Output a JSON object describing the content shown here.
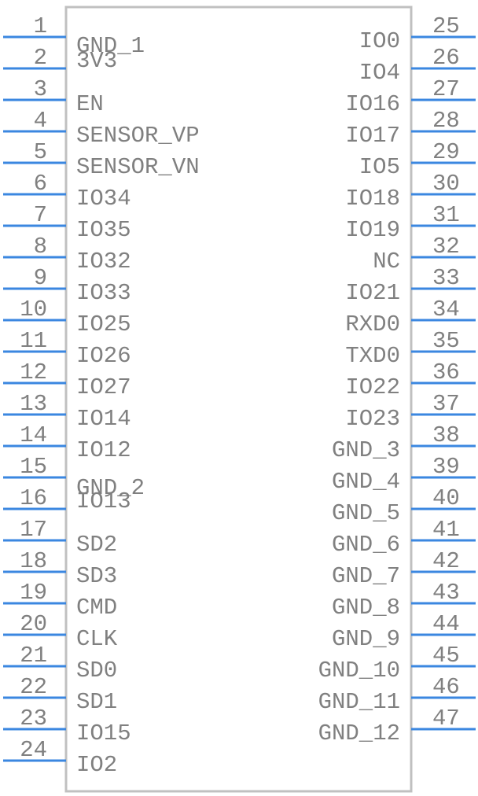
{
  "component": {
    "body_color": "#c0c0c0",
    "pin_color": "#3b87e0",
    "text_color": "#808080",
    "left_pins": [
      {
        "number": "1",
        "name": "GND_1"
      },
      {
        "number": "2",
        "name": "3V3"
      },
      {
        "number": "3",
        "name": "EN"
      },
      {
        "number": "4",
        "name": "SENSOR_VP"
      },
      {
        "number": "5",
        "name": "SENSOR_VN"
      },
      {
        "number": "6",
        "name": "IO34"
      },
      {
        "number": "7",
        "name": "IO35"
      },
      {
        "number": "8",
        "name": "IO32"
      },
      {
        "number": "9",
        "name": "IO33"
      },
      {
        "number": "10",
        "name": "IO25"
      },
      {
        "number": "11",
        "name": "IO26"
      },
      {
        "number": "12",
        "name": "IO27"
      },
      {
        "number": "13",
        "name": "IO14"
      },
      {
        "number": "14",
        "name": "IO12"
      },
      {
        "number": "15",
        "name": "GND_2"
      },
      {
        "number": "16",
        "name": "IO13"
      },
      {
        "number": "17",
        "name": "SD2"
      },
      {
        "number": "18",
        "name": "SD3"
      },
      {
        "number": "19",
        "name": "CMD"
      },
      {
        "number": "20",
        "name": "CLK"
      },
      {
        "number": "21",
        "name": "SD0"
      },
      {
        "number": "22",
        "name": "SD1"
      },
      {
        "number": "23",
        "name": "IO15"
      },
      {
        "number": "24",
        "name": "IO2"
      }
    ],
    "right_pins": [
      {
        "number": "25",
        "name": "IO0"
      },
      {
        "number": "26",
        "name": "IO4"
      },
      {
        "number": "27",
        "name": "IO16"
      },
      {
        "number": "28",
        "name": "IO17"
      },
      {
        "number": "29",
        "name": "IO5"
      },
      {
        "number": "30",
        "name": "IO18"
      },
      {
        "number": "31",
        "name": "IO19"
      },
      {
        "number": "32",
        "name": "NC"
      },
      {
        "number": "33",
        "name": "IO21"
      },
      {
        "number": "34",
        "name": "RXD0"
      },
      {
        "number": "35",
        "name": "TXD0"
      },
      {
        "number": "36",
        "name": "IO22"
      },
      {
        "number": "37",
        "name": "IO23"
      },
      {
        "number": "38",
        "name": "GND_3"
      },
      {
        "number": "39",
        "name": "GND_4"
      },
      {
        "number": "40",
        "name": "GND_5"
      },
      {
        "number": "41",
        "name": "GND_6"
      },
      {
        "number": "42",
        "name": "GND_7"
      },
      {
        "number": "43",
        "name": "GND_8"
      },
      {
        "number": "44",
        "name": "GND_9"
      },
      {
        "number": "45",
        "name": "GND_10"
      },
      {
        "number": "46",
        "name": "GND_11"
      },
      {
        "number": "47",
        "name": "GND_12"
      }
    ]
  }
}
